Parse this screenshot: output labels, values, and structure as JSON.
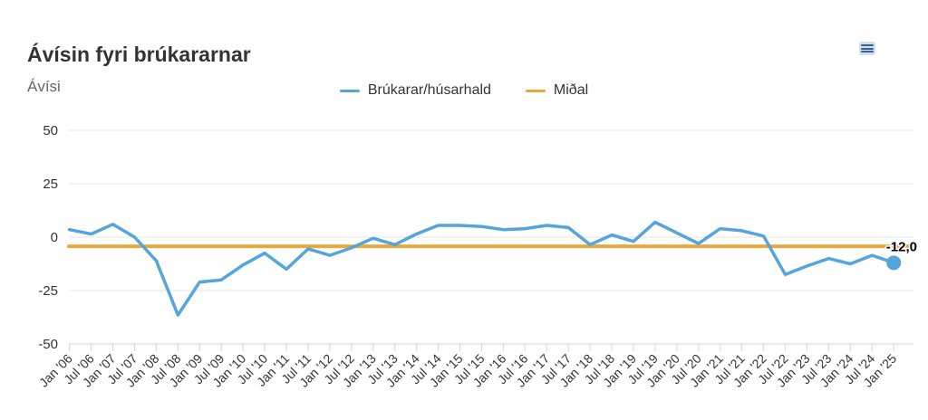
{
  "header": {
    "title": "Ávísin fyri brúkararnar",
    "subtitle": "Ávísi"
  },
  "chart_data": {
    "type": "line",
    "title": "Ávísin fyri brúkararnar",
    "subtitle": "Ávísi",
    "legend_position": "top-center",
    "grid": true,
    "ylim": [
      -50,
      50
    ],
    "yticks": [
      50,
      25,
      0,
      -25,
      -50
    ],
    "categories": [
      "Jan '06",
      "Jul '06",
      "Jan '07",
      "Jul '07",
      "Jan '08",
      "Jul '08",
      "Jan '09",
      "Jul '09",
      "Jan '10",
      "Jul '10",
      "Jan '11",
      "Jul '11",
      "Jan '12",
      "Jul '12",
      "Jan '13",
      "Jul '13",
      "Jan '14",
      "Jul '14",
      "Jan '15",
      "Jul '15",
      "Jan '16",
      "Jul '16",
      "Jan '17",
      "Jul '17",
      "Jan '18",
      "Jul '18",
      "Jan '19",
      "Jul '19",
      "Jan '20",
      "Jul '20",
      "Jan '21",
      "Jul '21",
      "Jan '22",
      "Jul '22",
      "Jan '23",
      "Jul '23",
      "Jan '24",
      "Jul '24",
      "Jan '25"
    ],
    "series": [
      {
        "name": "Brúkarar/húsarhald",
        "color": "#56a4dc",
        "values": [
          3.5,
          1.5,
          6,
          0,
          -11,
          -36.5,
          -21,
          -20,
          -13,
          -7.5,
          -15,
          -5.5,
          -8.5,
          -5,
          -0.5,
          -3.5,
          1.5,
          5.5,
          5.5,
          5,
          3.5,
          4,
          5.5,
          4.5,
          -3.5,
          1,
          -2,
          7,
          2,
          -3,
          4,
          3,
          0.5,
          -17.5,
          -13.5,
          -10,
          -12.5,
          -8.5,
          -12
        ]
      },
      {
        "name": "Miðal",
        "color": "#e9a83e",
        "constant_value": -4.3
      }
    ],
    "last_point_label": "-12,0",
    "colors": {
      "gridline": "#e6e6e6",
      "axis_line": "#ccd6eb",
      "tick": "#ccd6eb",
      "label_text": "#333333"
    }
  }
}
